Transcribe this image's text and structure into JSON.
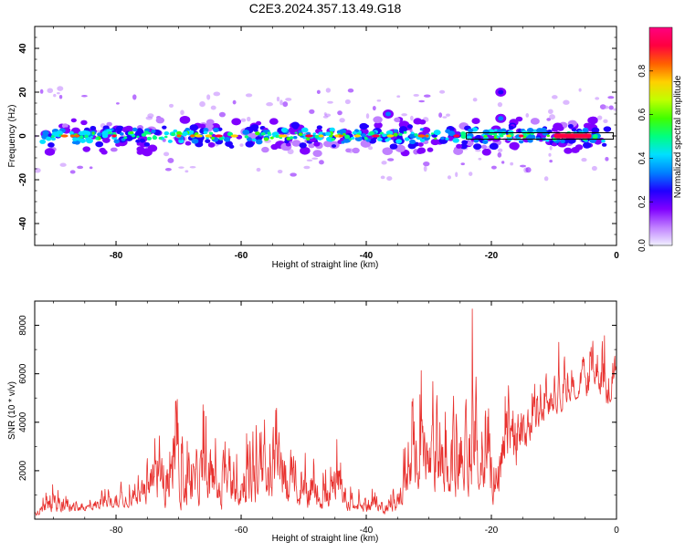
{
  "figure": {
    "title": "C2E3.2024.357.13.49.G18"
  },
  "chart_data": [
    {
      "type": "heatmap",
      "xlabel": "Height of straight line (km)",
      "ylabel": "Frequency (Hz)",
      "xlim": [
        -93,
        0
      ],
      "ylim": [
        -50,
        50
      ],
      "xticks": [
        "-80",
        "-60",
        "-40",
        "-20",
        "0"
      ],
      "xtick_values": [
        -80,
        -60,
        -40,
        -20,
        0
      ],
      "yticks": [
        "40",
        "20",
        "0",
        "-20",
        "-40"
      ],
      "ytick_values": [
        40,
        20,
        0,
        -20,
        -40
      ],
      "colorbar": {
        "label": "Normalized spectral amplitude",
        "range": [
          0,
          1
        ],
        "ticks": [
          "0.0",
          "0.2",
          "0.4",
          "0.6",
          "0.8"
        ],
        "tick_values": [
          0.0,
          0.2,
          0.4,
          0.6,
          0.8
        ],
        "colormap": [
          "#f0f0ff",
          "#c080ff",
          "#8000ff",
          "#2000ff",
          "#0080ff",
          "#00e0ff",
          "#00ff80",
          "#40ff00",
          "#c0ff00",
          "#ffd000",
          "#ff6000",
          "#ff0040",
          "#ff0080"
        ]
      },
      "band": {
        "center_frequency_hz": 0,
        "half_width_hz": 3,
        "outlier_range_hz": [
          -20,
          22
        ]
      },
      "strong_line": {
        "x_range_km": [
          -10,
          -4
        ],
        "frequency_hz": 0,
        "amplitude": 0.95
      },
      "features": [
        {
          "x_km": -36.5,
          "frequency_hz": 10,
          "amplitude": 0.3
        },
        {
          "x_km": -18.5,
          "frequency_hz": 20,
          "amplitude": 0.25
        },
        {
          "x_km": -18.5,
          "frequency_hz": 8,
          "amplitude": 0.3
        }
      ]
    },
    {
      "type": "line",
      "xlabel": "Height of straight line (km)",
      "ylabel": "SNR (10 * v/v)",
      "xlim": [
        -93,
        0
      ],
      "ylim": [
        0,
        9000
      ],
      "xticks": [
        "-80",
        "-60",
        "-40",
        "-20",
        "0"
      ],
      "xtick_values": [
        -80,
        -60,
        -40,
        -20,
        0
      ],
      "yticks": [
        "8000",
        "6000",
        "4000",
        "2000"
      ],
      "ytick_values": [
        8000,
        6000,
        4000,
        2000
      ],
      "grid": false,
      "series": [
        {
          "color": "#e8312e",
          "x": [
            -93,
            -90,
            -88,
            -86,
            -84,
            -82,
            -80,
            -78,
            -76,
            -75,
            -74,
            -73,
            -72,
            -71,
            -70,
            -69,
            -68,
            -67,
            -66,
            -65,
            -64,
            -63,
            -62,
            -61,
            -60,
            -59,
            -58,
            -57,
            -56,
            -55,
            -54,
            -53,
            -52,
            -51,
            -50,
            -49,
            -48,
            -47,
            -46,
            -45,
            -44,
            -43,
            -42,
            -41,
            -40,
            -39,
            -38,
            -37,
            -36,
            -35,
            -34,
            -33,
            -32,
            -31,
            -30,
            -29,
            -28,
            -27,
            -26,
            -25,
            -24,
            -23,
            -22.5,
            -22,
            -21,
            -20,
            -19,
            -18,
            -17,
            -16,
            -15,
            -14,
            -13,
            -12,
            -11,
            -10,
            -9,
            -8,
            -7,
            -6,
            -5,
            -4,
            -3,
            -2,
            -1.5,
            -1,
            -0.5,
            0
          ],
          "y_envelope_low": [
            100,
            150,
            200,
            250,
            300,
            350,
            400,
            450,
            500,
            400,
            300,
            200,
            250,
            300,
            250,
            200,
            250,
            300,
            200,
            200,
            150,
            200,
            250,
            300,
            250,
            200,
            150,
            200,
            300,
            250,
            200,
            300,
            400,
            300,
            200,
            250,
            300,
            200,
            150,
            200,
            300,
            250,
            200,
            250,
            200,
            250,
            200,
            150,
            200,
            150,
            500,
            300,
            1000,
            800,
            700,
            500,
            600,
            300,
            500,
            400,
            900,
            300,
            500,
            400,
            600,
            300,
            500,
            1000,
            2000,
            1500,
            2500,
            2800,
            3300,
            3600,
            3800,
            4300,
            4100,
            4600,
            4800,
            4900,
            4700,
            4900,
            5200,
            4500,
            4300,
            4600,
            5200,
            5400
          ],
          "y_envelope_high": [
            500,
            1500,
            1600,
            700,
            1100,
            1300,
            1500,
            1800,
            2000,
            2500,
            4800,
            3500,
            3800,
            4500,
            6000,
            4500,
            3500,
            4400,
            5000,
            3800,
            3900,
            4200,
            4500,
            4000,
            4700,
            5000,
            5500,
            5500,
            4400,
            5600,
            5200,
            3500,
            2800,
            2300,
            2600,
            3100,
            2600,
            3500,
            1900,
            3200,
            3500,
            1800,
            1400,
            1200,
            1200,
            1400,
            1200,
            1300,
            1300,
            1600,
            4000,
            5500,
            6600,
            6000,
            6000,
            5500,
            6000,
            3500,
            5800,
            5000,
            5900,
            9000,
            8300,
            5500,
            7000,
            5000,
            3500,
            5500,
            8300,
            6000,
            5600,
            5300,
            5600,
            6000,
            6000,
            6000,
            7700,
            6800,
            6300,
            6700,
            7300,
            8000,
            8700,
            8500,
            6000,
            6500,
            7800,
            8500
          ]
        }
      ]
    }
  ]
}
